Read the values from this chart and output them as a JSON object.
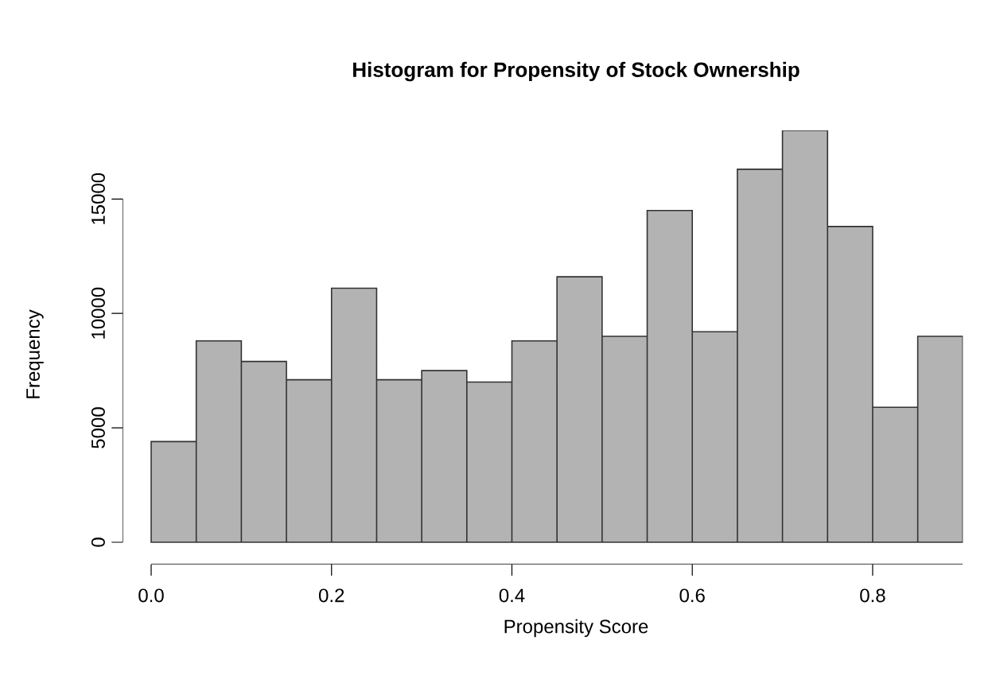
{
  "chart_data": {
    "type": "histogram",
    "title": "Histogram for Propensity of Stock Ownership",
    "xlabel": "Propensity Score",
    "ylabel": "Frequency",
    "bins": [
      0,
      0.05,
      0.1,
      0.15,
      0.2,
      0.25,
      0.3,
      0.35,
      0.4,
      0.45,
      0.5,
      0.55,
      0.6,
      0.65,
      0.7,
      0.75,
      0.8,
      0.85,
      0.9
    ],
    "values": [
      4400,
      8800,
      7900,
      7100,
      11100,
      7100,
      7500,
      7000,
      8800,
      11600,
      9000,
      14500,
      9200,
      16300,
      18000,
      13800,
      5900,
      9000
    ],
    "color": "#b3b3b3",
    "xlim": [
      0,
      0.9
    ],
    "ylim": [
      0,
      18000
    ],
    "xticks": [
      {
        "value": 0,
        "label": "0.0"
      },
      0.2,
      0.4,
      0.6,
      0.8
    ],
    "yticks": [
      0,
      5000,
      10000,
      15000
    ]
  }
}
